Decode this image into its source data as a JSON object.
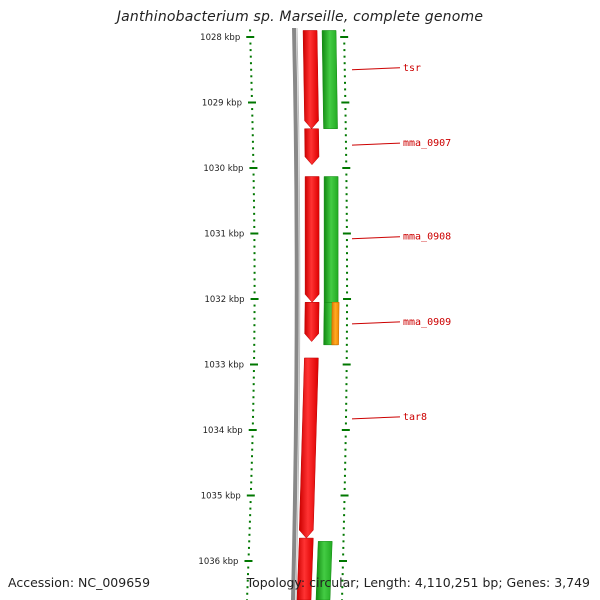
{
  "title": "Janthinobacterium sp. Marseille, complete genome",
  "footer": {
    "accession": "Accession: NC_009659",
    "stats": "Topology: circular; Length: 4,110,251 bp; Genes: 3,749"
  },
  "colors": {
    "forward_gene": "#ee1111",
    "reverse_gene": "#22bb22",
    "reverse_gene_alt": "#ff9900",
    "tick": "#007700",
    "backbone": "#888888",
    "label": "#cc0000"
  },
  "chart_data": {
    "type": "linear genome map",
    "title": "Janthinobacterium sp. Marseille, complete genome",
    "position_range_kbp": [
      1027.9,
      1036.6
    ],
    "ruler_ticks_kbp": [
      "1028 kbp",
      "1029 kbp",
      "1030 kbp",
      "1031 kbp",
      "1032 kbp",
      "1033 kbp",
      "1034 kbp",
      "1035 kbp",
      "1036 kbp"
    ],
    "tick_values_kbp": [
      1028,
      1029,
      1030,
      1031,
      1032,
      1033,
      1034,
      1035,
      1036
    ],
    "forward_genes": [
      {
        "start_kbp": 1027.9,
        "end_kbp": 1029.4
      },
      {
        "start_kbp": 1029.4,
        "end_kbp": 1029.95
      },
      {
        "start_kbp": 1030.13,
        "end_kbp": 1032.05
      },
      {
        "start_kbp": 1032.05,
        "end_kbp": 1032.65
      },
      {
        "start_kbp": 1032.9,
        "end_kbp": 1035.65
      },
      {
        "start_kbp": 1035.65,
        "end_kbp": 1036.6
      }
    ],
    "reverse_genes": [
      {
        "start_kbp": 1027.9,
        "end_kbp": 1029.4,
        "color": "green"
      },
      {
        "start_kbp": 1030.13,
        "end_kbp": 1032.05,
        "color": "green"
      },
      {
        "start_kbp": 1032.05,
        "end_kbp": 1032.7,
        "color": "green"
      },
      {
        "start_kbp": 1032.05,
        "end_kbp": 1032.7,
        "color": "orange"
      },
      {
        "start_kbp": 1035.7,
        "end_kbp": 1036.6,
        "color": "green"
      }
    ],
    "gene_labels": [
      {
        "name": "tsr",
        "position_kbp": 1028.5
      },
      {
        "name": "mma_0907",
        "position_kbp": 1029.65
      },
      {
        "name": "mma_0908",
        "position_kbp": 1031.08
      },
      {
        "name": "mma_0909",
        "position_kbp": 1032.38
      },
      {
        "name": "tar8",
        "position_kbp": 1033.83
      }
    ]
  }
}
